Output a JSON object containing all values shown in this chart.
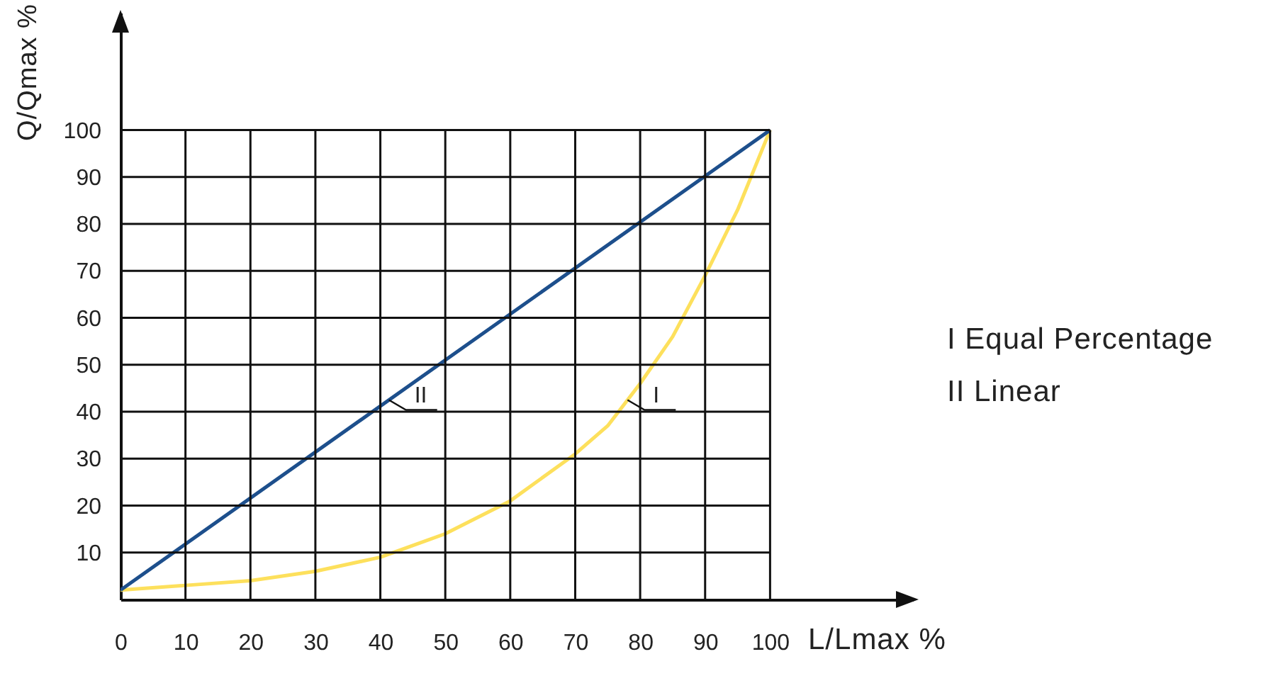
{
  "chart_data": {
    "type": "line",
    "xlabel": "L/Lmax %",
    "ylabel": "Q/Qmax %",
    "series": [
      {
        "name": "I",
        "color": "#fde05c",
        "x": [
          0,
          10,
          20,
          30,
          40,
          50,
          60,
          70,
          75,
          80,
          85,
          90,
          95,
          100
        ],
        "values": [
          2,
          3,
          4,
          6,
          9,
          14,
          21,
          31,
          37,
          46,
          56,
          69,
          83,
          100
        ]
      },
      {
        "name": "II",
        "color": "#1d4f8c",
        "x": [
          0,
          100
        ],
        "values": [
          2,
          100
        ]
      }
    ],
    "xlim": [
      0,
      122
    ],
    "ylim": [
      0,
      125
    ],
    "xticks": [
      0,
      10,
      20,
      30,
      40,
      50,
      60,
      70,
      80,
      90,
      100
    ],
    "yticks": [
      10,
      20,
      30,
      40,
      50,
      60,
      70,
      80,
      90,
      100
    ],
    "grid": true,
    "marker": "none",
    "line_style": "solid",
    "annotations": [
      "I Equal Percentage",
      "II Linear"
    ]
  }
}
